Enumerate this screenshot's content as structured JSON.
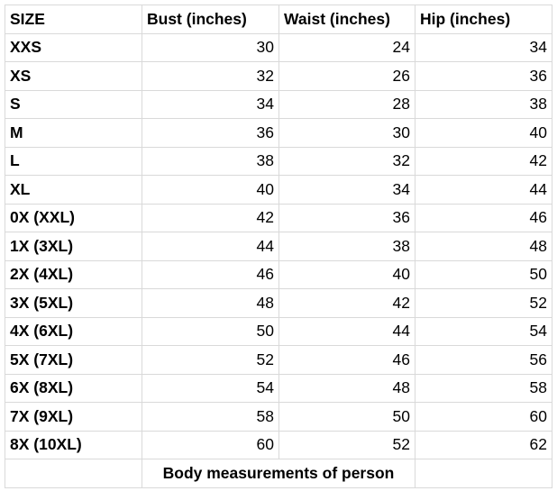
{
  "headers": [
    "SIZE",
    "Bust (inches)",
    "Waist (inches)",
    "Hip (inches)"
  ],
  "rows": [
    [
      "XXS",
      "30",
      "24",
      "34"
    ],
    [
      "XS",
      "32",
      "26",
      "36"
    ],
    [
      "S",
      "34",
      "28",
      "38"
    ],
    [
      "M",
      "36",
      "30",
      "40"
    ],
    [
      "L",
      "38",
      "32",
      "42"
    ],
    [
      "XL",
      "40",
      "34",
      "44"
    ],
    [
      "0X (XXL)",
      "42",
      "36",
      "46"
    ],
    [
      "1X (3XL)",
      "44",
      "38",
      "48"
    ],
    [
      "2X (4XL)",
      "46",
      "40",
      "50"
    ],
    [
      "3X (5XL)",
      "48",
      "42",
      "52"
    ],
    [
      "4X (6XL)",
      "50",
      "44",
      "54"
    ],
    [
      "5X (7XL)",
      "52",
      "46",
      "56"
    ],
    [
      "6X (8XL)",
      "54",
      "48",
      "58"
    ],
    [
      "7X (9XL)",
      "58",
      "50",
      "60"
    ],
    [
      "8X (10XL)",
      "60",
      "52",
      "62"
    ]
  ],
  "footer": "Body measurements of person"
}
